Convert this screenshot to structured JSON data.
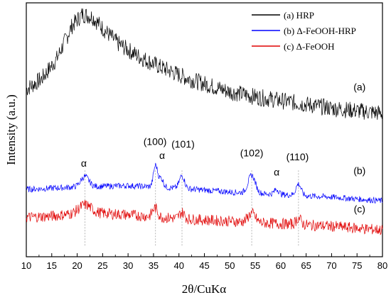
{
  "chart_data": {
    "type": "line",
    "xlabel": "2θ/CuKα",
    "ylabel": "Intensity (a.u.)",
    "xlim": [
      10,
      80
    ],
    "x_ticks": [
      "10",
      "15",
      "20",
      "25",
      "30",
      "35",
      "40",
      "45",
      "50",
      "55",
      "60",
      "65",
      "70",
      "75",
      "80"
    ],
    "grid": false,
    "legend_position": "top-right",
    "series": [
      {
        "name": "(a) HRP",
        "tag": "(a)",
        "color": "#000000",
        "noise": 0.034,
        "baseline_points": [
          [
            10,
            0.66
          ],
          [
            13,
            0.7
          ],
          [
            16,
            0.78
          ],
          [
            19,
            0.91
          ],
          [
            21,
            0.955
          ],
          [
            23,
            0.945
          ],
          [
            25,
            0.9
          ],
          [
            28,
            0.84
          ],
          [
            32,
            0.79
          ],
          [
            36,
            0.75
          ],
          [
            42,
            0.7
          ],
          [
            50,
            0.65
          ],
          [
            55,
            0.63
          ],
          [
            60,
            0.615
          ],
          [
            70,
            0.585
          ],
          [
            80,
            0.565
          ]
        ],
        "peaks": []
      },
      {
        "name": "(b) Δ-FeOOH-HRP",
        "tag": "(b)",
        "color": "#0000ff",
        "noise": 0.012,
        "baseline_points": [
          [
            10,
            0.265
          ],
          [
            20,
            0.275
          ],
          [
            30,
            0.28
          ],
          [
            40,
            0.27
          ],
          [
            50,
            0.255
          ],
          [
            60,
            0.245
          ],
          [
            70,
            0.235
          ],
          [
            80,
            0.22
          ]
        ],
        "peaks": [
          [
            21.5,
            0.04,
            0.8
          ],
          [
            35.4,
            0.085,
            0.4
          ],
          [
            36.5,
            0.035,
            0.45
          ],
          [
            40.6,
            0.05,
            0.5
          ],
          [
            54.3,
            0.07,
            0.7
          ],
          [
            59.2,
            0.02,
            0.45
          ],
          [
            63.5,
            0.045,
            0.5
          ]
        ]
      },
      {
        "name": "(c) Δ-FeOOH",
        "tag": "(c)",
        "color": "#e00000",
        "noise": 0.022,
        "baseline_points": [
          [
            10,
            0.155
          ],
          [
            15,
            0.16
          ],
          [
            22,
            0.175
          ],
          [
            30,
            0.165
          ],
          [
            40,
            0.15
          ],
          [
            50,
            0.14
          ],
          [
            60,
            0.13
          ],
          [
            70,
            0.12
          ],
          [
            80,
            0.105
          ]
        ],
        "peaks": [
          [
            21.5,
            0.03,
            1.2
          ],
          [
            35.3,
            0.035,
            0.5
          ],
          [
            40.6,
            0.025,
            0.5
          ],
          [
            54.3,
            0.035,
            0.7
          ],
          [
            63.5,
            0.025,
            0.5
          ]
        ]
      }
    ],
    "peak_labels": [
      {
        "text": "α",
        "x": 21.3,
        "y": 0.355
      },
      {
        "text": "(100)",
        "x": 35.3,
        "y": 0.44
      },
      {
        "text": "α",
        "x": 36.7,
        "y": 0.385
      },
      {
        "text": "(101)",
        "x": 40.8,
        "y": 0.43
      },
      {
        "text": "(102)",
        "x": 54.3,
        "y": 0.395
      },
      {
        "text": "α",
        "x": 59.2,
        "y": 0.32
      },
      {
        "text": "(110)",
        "x": 63.3,
        "y": 0.38
      }
    ],
    "curve_tags": [
      {
        "text": "(a)",
        "x": 75.5,
        "y": 0.655
      },
      {
        "text": "(b)",
        "x": 75.5,
        "y": 0.325
      },
      {
        "text": "(c)",
        "x": 75.5,
        "y": 0.175
      }
    ],
    "reference_lines_x": [
      21.5,
      35.4,
      40.6,
      54.3,
      63.5
    ]
  }
}
